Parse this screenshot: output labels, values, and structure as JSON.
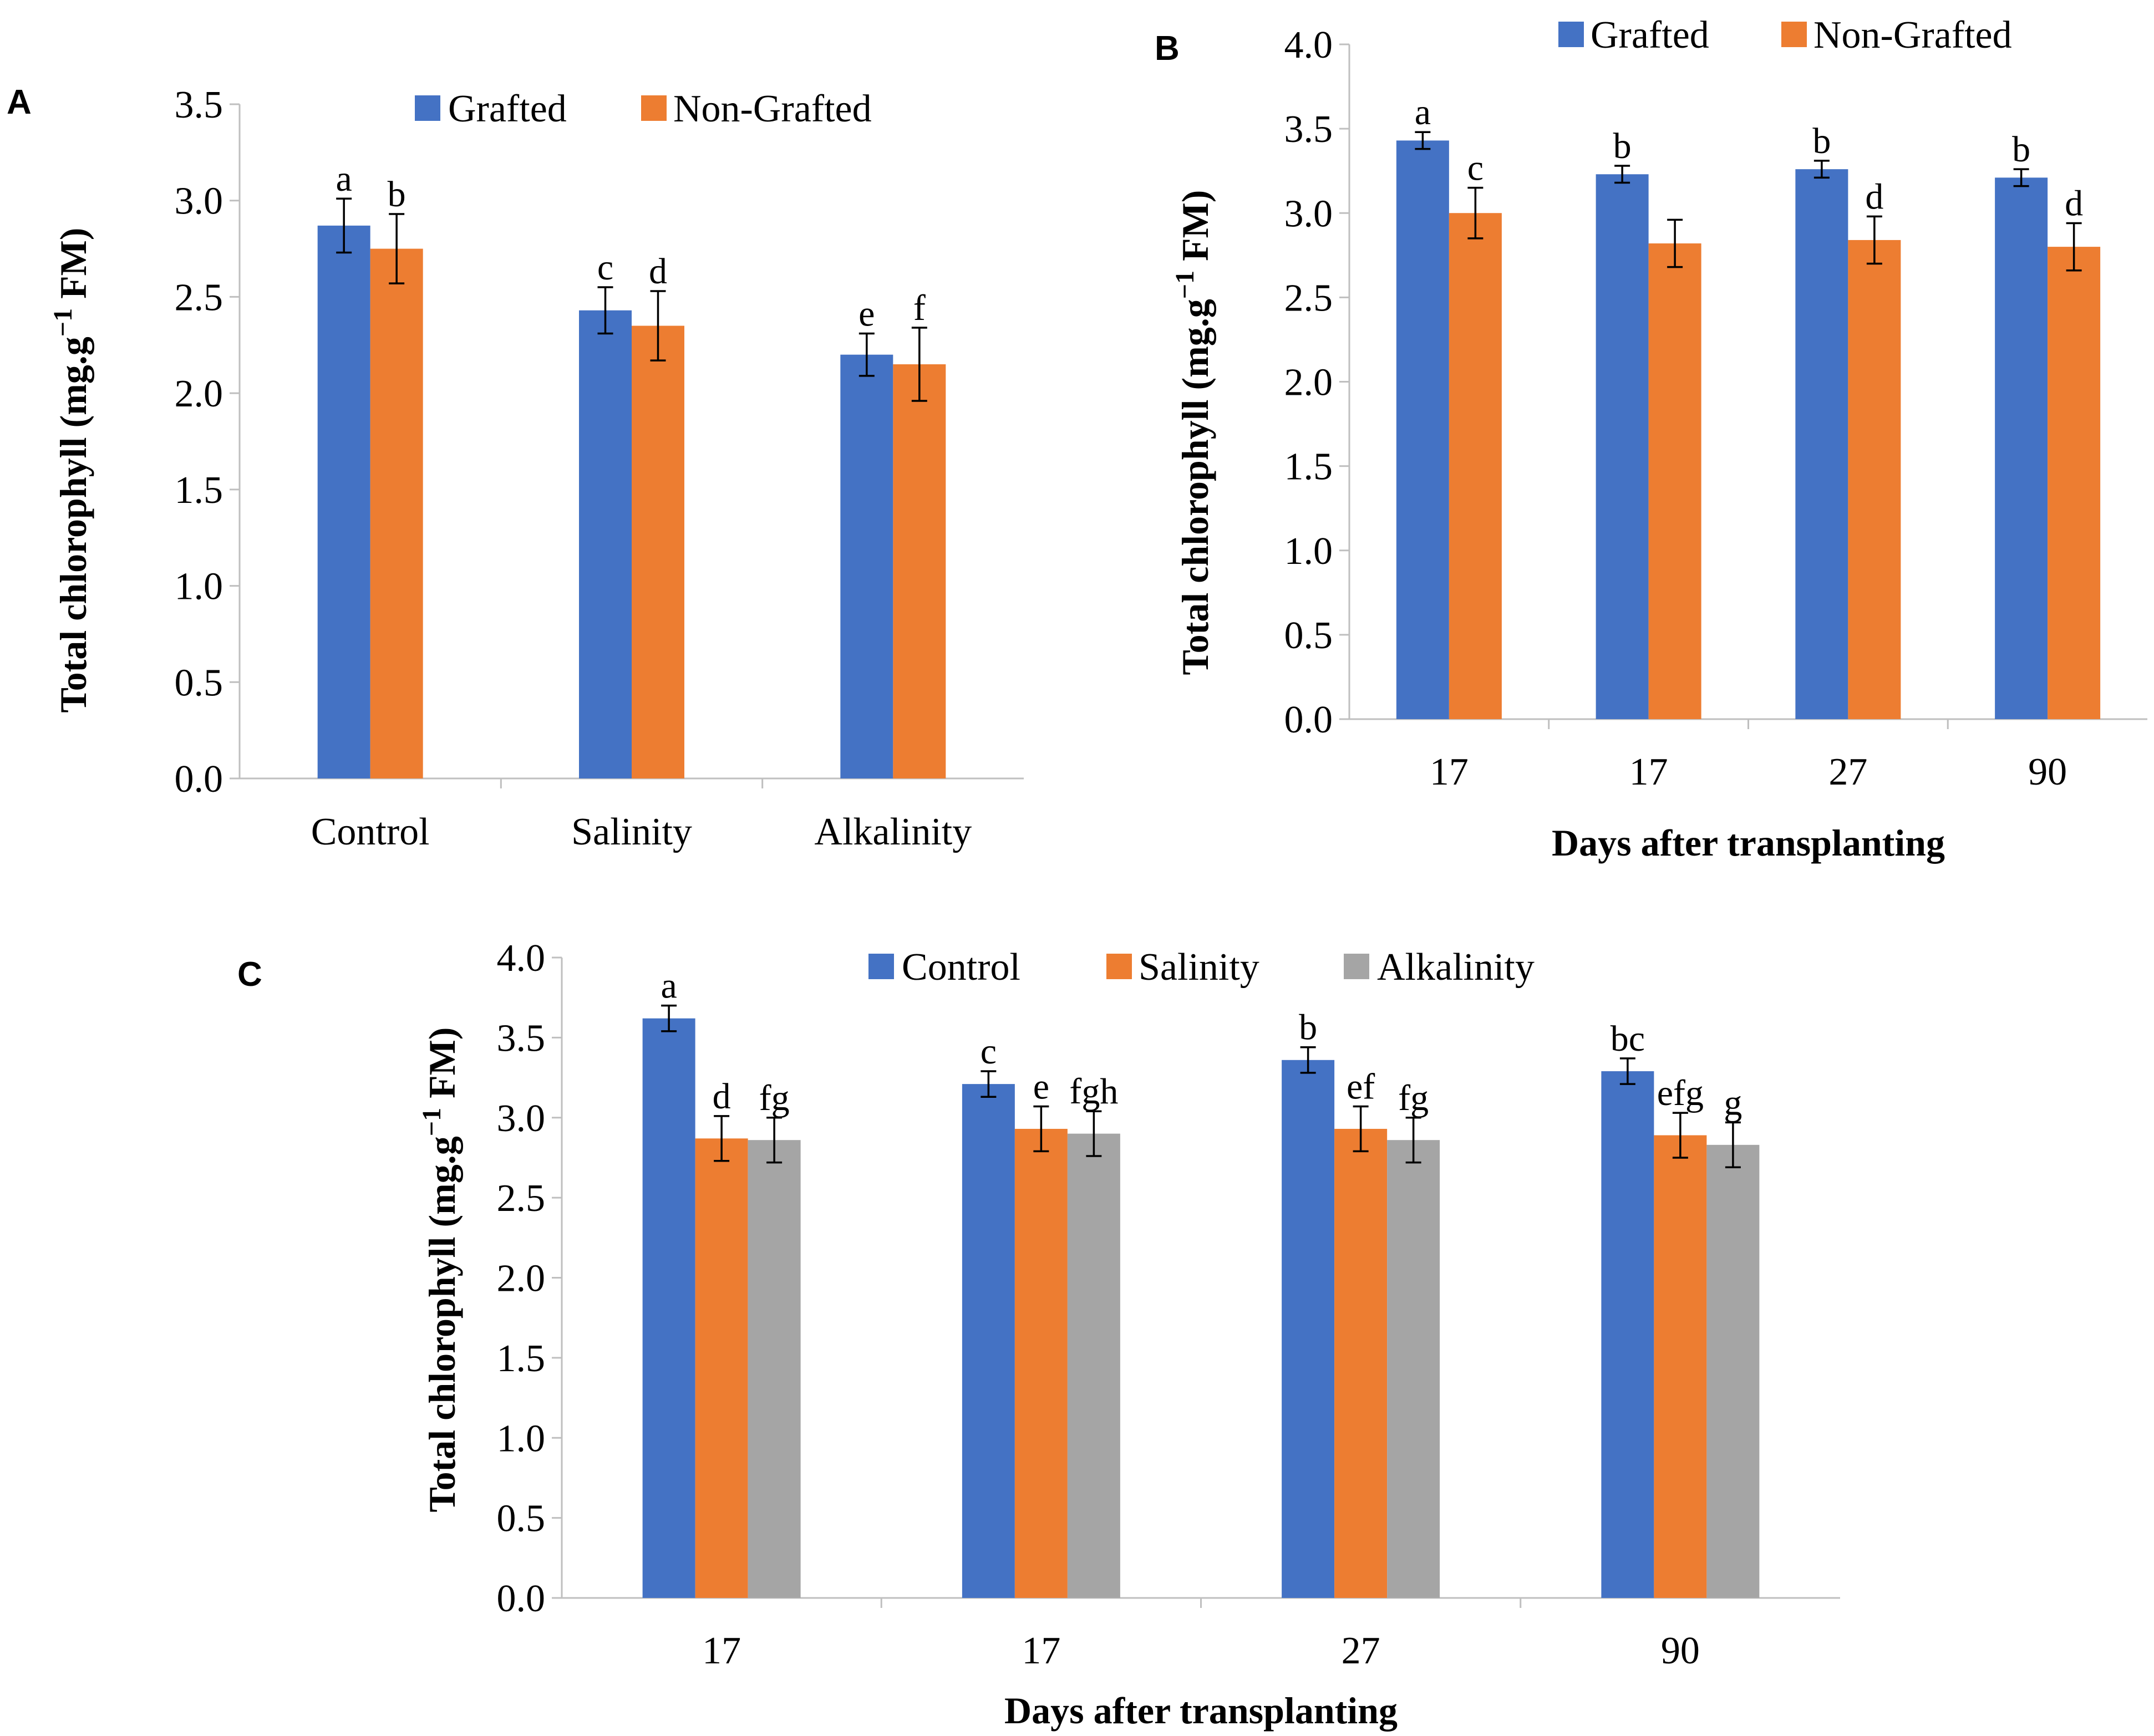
{
  "chart_data": [
    {
      "panel": "A",
      "type": "bar",
      "categories": [
        "Control",
        "Salinity",
        "Alkalinity"
      ],
      "ylim": [
        0,
        3.5
      ],
      "ytick_step": 0.5,
      "ylabel_main": "Total chlorophyll (mg.g",
      "ylabel_sup": "−1",
      "ylabel_tail": " FM)",
      "xlabel": "",
      "series": [
        {
          "name": "Grafted",
          "color": "#4472C4",
          "values": [
            2.87,
            2.43,
            2.2
          ],
          "errors": [
            0.14,
            0.12,
            0.11
          ],
          "letters": [
            "a",
            "c",
            "e"
          ]
        },
        {
          "name": "Non-Grafted",
          "color": "#ED7D31",
          "values": [
            2.75,
            2.35,
            2.15
          ],
          "errors": [
            0.18,
            0.18,
            0.19
          ],
          "letters": [
            "b",
            "d",
            "f"
          ]
        }
      ]
    },
    {
      "panel": "B",
      "type": "bar",
      "categories": [
        "17",
        "17",
        "27",
        "90"
      ],
      "ylim": [
        0,
        4.0
      ],
      "ytick_step": 0.5,
      "ylabel_main": "Total chlorophyll (mg.g",
      "ylabel_sup": "−1",
      "ylabel_tail": " FM)",
      "xlabel": "Days after transplanting",
      "series": [
        {
          "name": "Grafted",
          "color": "#4472C4",
          "values": [
            3.43,
            3.23,
            3.26,
            3.21
          ],
          "errors": [
            0.05,
            0.05,
            0.05,
            0.05
          ],
          "letters": [
            "a",
            "b",
            "b",
            "b"
          ]
        },
        {
          "name": "Non-Grafted",
          "color": "#ED7D31",
          "values": [
            3.0,
            2.82,
            2.84,
            2.8
          ],
          "errors": [
            0.15,
            0.14,
            0.14,
            0.14
          ],
          "letters": [
            "c",
            "",
            "d",
            "d"
          ]
        }
      ]
    },
    {
      "panel": "C",
      "type": "bar",
      "categories": [
        "17",
        "17",
        "27",
        "90"
      ],
      "ylim": [
        0,
        4.0
      ],
      "ytick_step": 0.5,
      "ylabel_main": "Total chlorophyll (mg.g",
      "ylabel_sup": "−1",
      "ylabel_tail": " FM)",
      "xlabel": "Days after transplanting",
      "series": [
        {
          "name": "Control",
          "color": "#4472C4",
          "values": [
            3.62,
            3.21,
            3.36,
            3.29
          ],
          "errors": [
            0.08,
            0.08,
            0.08,
            0.08
          ],
          "letters": [
            "a",
            "c",
            "b",
            "bc"
          ]
        },
        {
          "name": "Salinity",
          "color": "#ED7D31",
          "values": [
            2.87,
            2.93,
            2.93,
            2.89
          ],
          "errors": [
            0.14,
            0.14,
            0.14,
            0.14
          ],
          "letters": [
            "d",
            "e",
            "ef",
            "efg"
          ]
        },
        {
          "name": "Alkalinity",
          "color": "#A5A5A5",
          "values": [
            2.86,
            2.9,
            2.86,
            2.83
          ],
          "errors": [
            0.14,
            0.14,
            0.14,
            0.14
          ],
          "letters": [
            "fg",
            "fgh",
            "fg",
            "g"
          ]
        }
      ]
    }
  ]
}
